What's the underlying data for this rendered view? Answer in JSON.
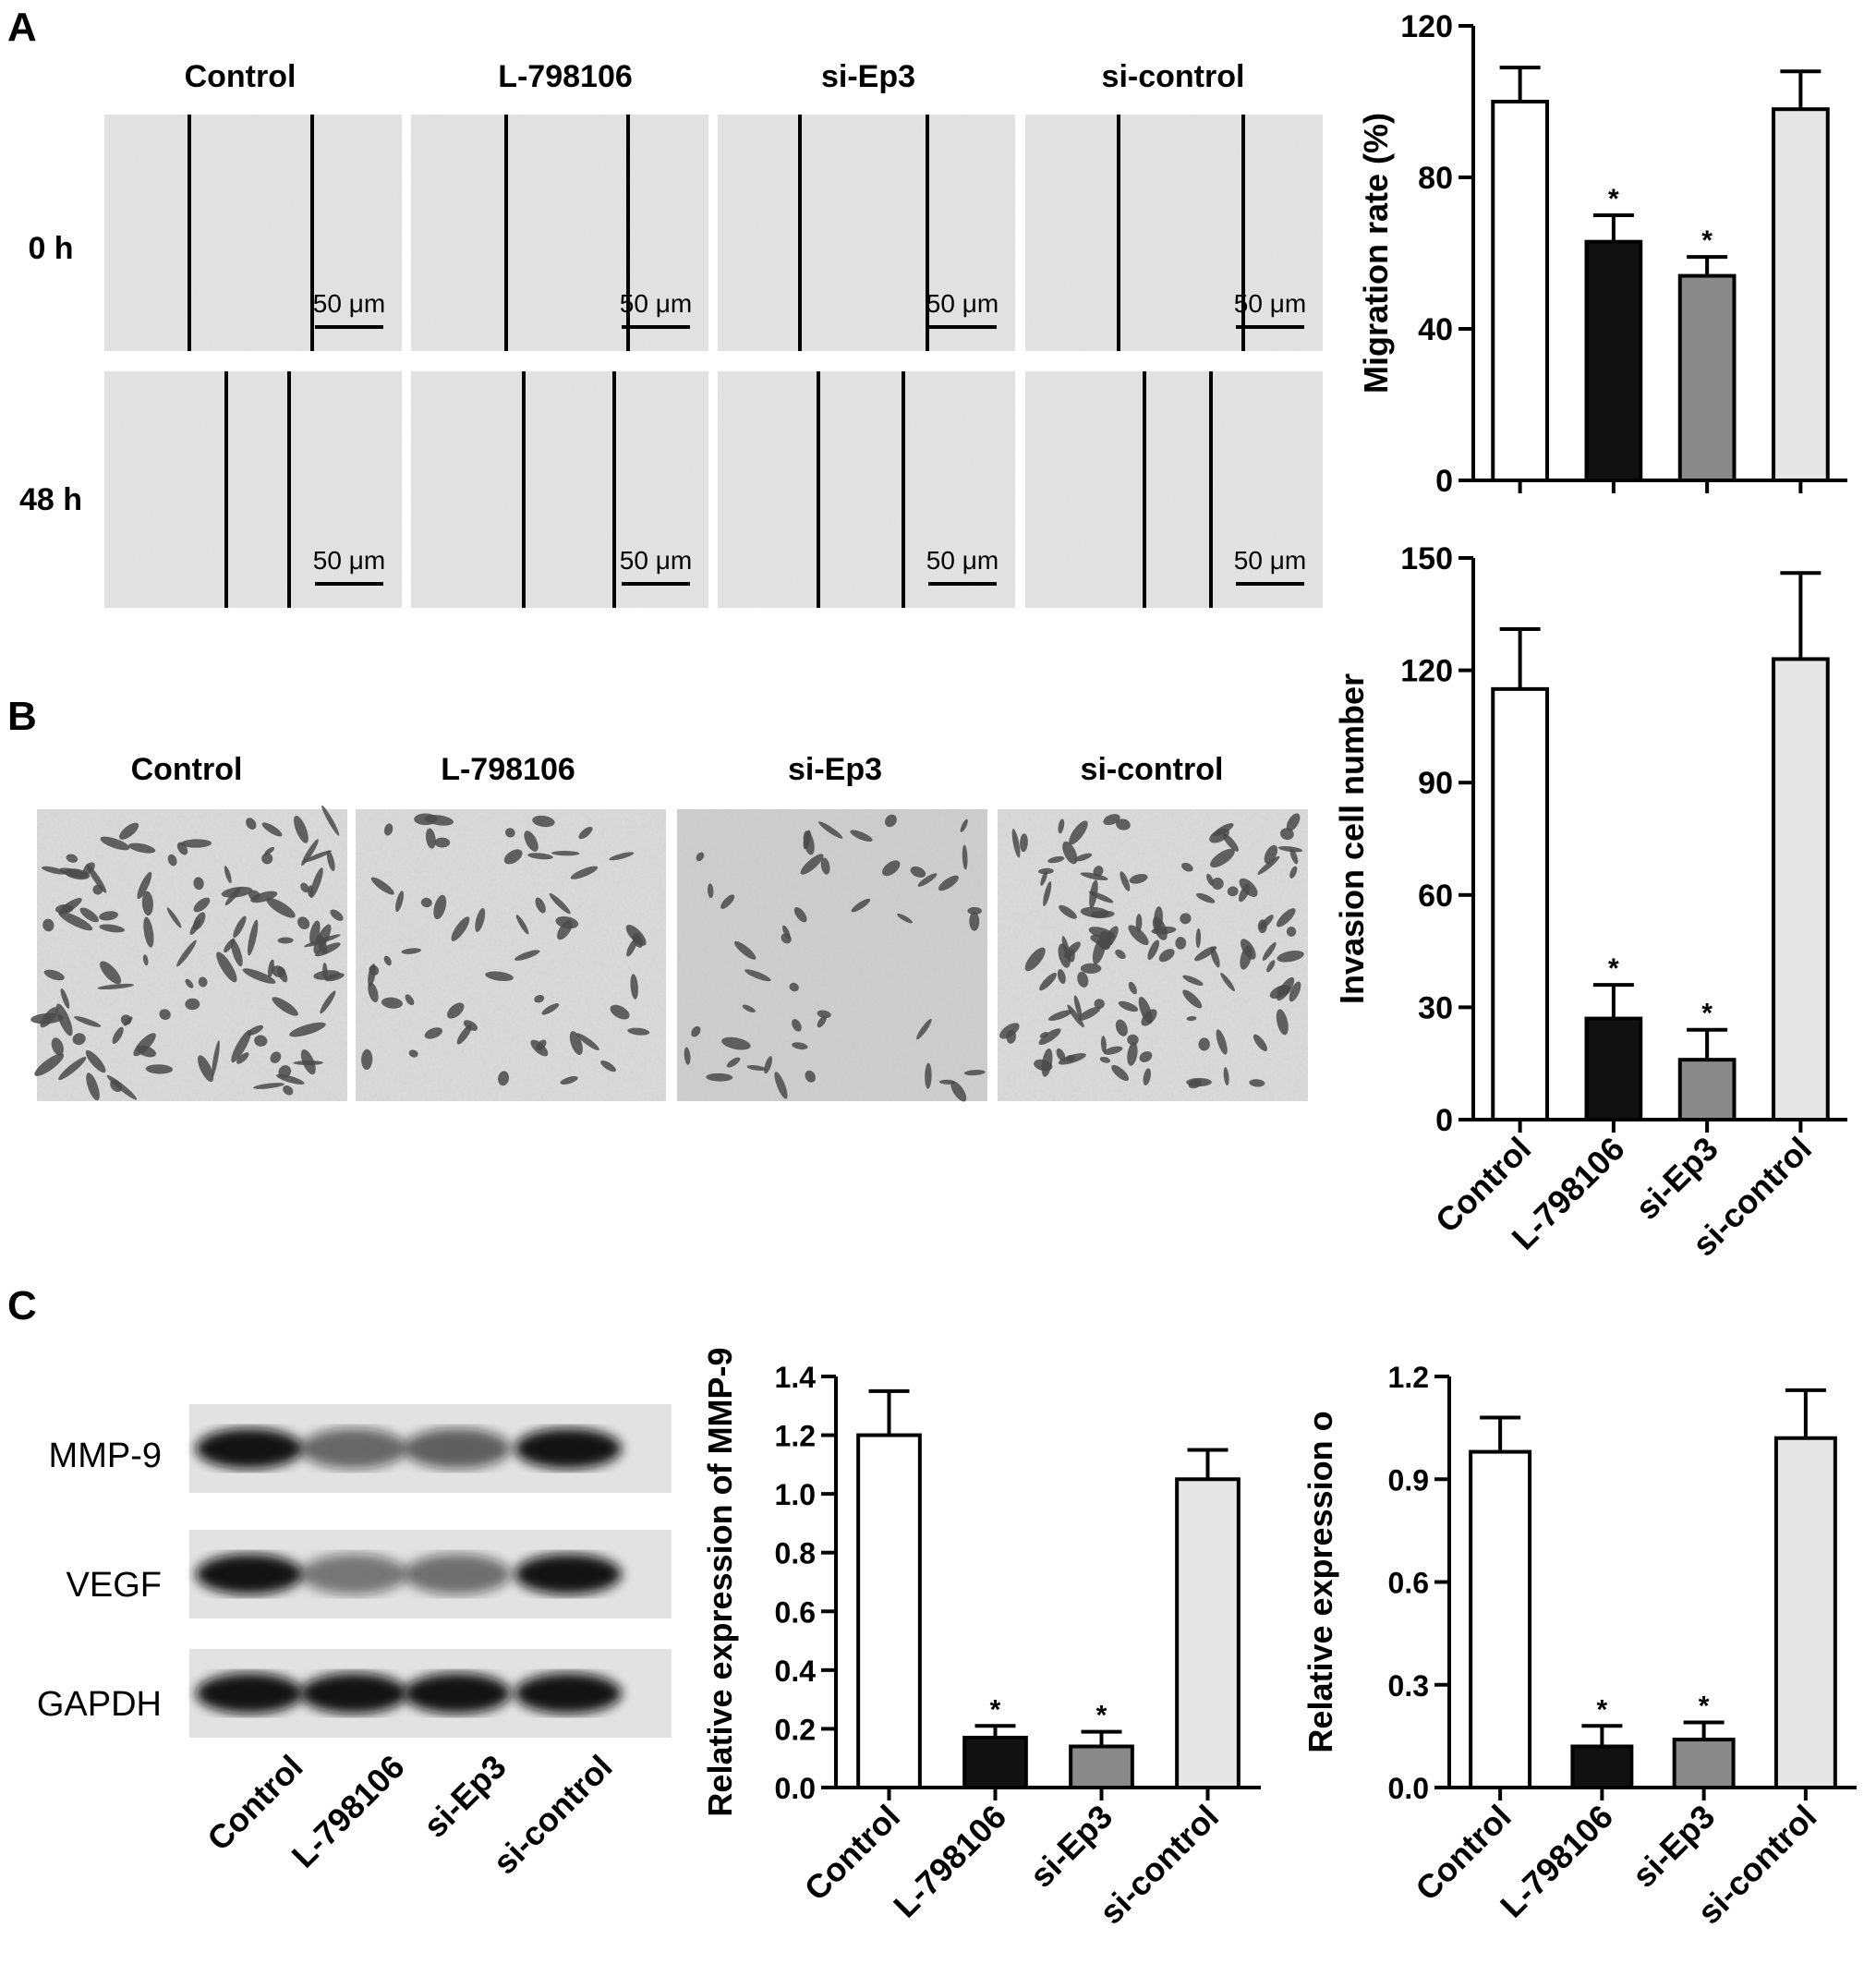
{
  "panels": {
    "a": "A",
    "b": "B",
    "c": "C"
  },
  "groups": [
    "Control",
    "L-798106",
    "si-Ep3",
    "si-control"
  ],
  "panel_a": {
    "times": [
      "0 h",
      "48 h"
    ],
    "scale_bar": "50 μm"
  },
  "panel_b": {
    "scale_bar": ""
  },
  "panel_c": {
    "blot_labels": [
      "MMP-9",
      "VEGF",
      "GAPDH"
    ]
  },
  "bar_fills": [
    "#ffffff",
    "#111111",
    "#8a8a8a",
    "#e6e6e6"
  ],
  "significance_mark": "*",
  "chart_data": [
    {
      "type": "bar",
      "title": "",
      "xlabel": "",
      "ylabel": "Migration rate (%)",
      "categories": [
        "Control",
        "L-798106",
        "si-Ep3",
        "si-control"
      ],
      "values": [
        100,
        63,
        54,
        98
      ],
      "errors": [
        9,
        7,
        5,
        10
      ],
      "significant": [
        false,
        true,
        true,
        false
      ],
      "ylim": [
        0,
        120
      ],
      "yticks": [
        "0",
        "40",
        "80",
        "120"
      ],
      "show_xticklabels": false
    },
    {
      "type": "bar",
      "title": "",
      "xlabel": "",
      "ylabel": "Invasion cell number",
      "categories": [
        "Control",
        "L-798106",
        "si-Ep3",
        "si-control"
      ],
      "values": [
        115,
        27,
        16,
        123
      ],
      "errors": [
        16,
        9,
        8,
        23
      ],
      "significant": [
        false,
        true,
        true,
        false
      ],
      "ylim": [
        0,
        150
      ],
      "yticks": [
        "0",
        "30",
        "60",
        "90",
        "120",
        "150"
      ],
      "show_xticklabels": true
    },
    {
      "type": "bar",
      "title": "",
      "xlabel": "",
      "ylabel": "Relative expression of MMP-9",
      "categories": [
        "Control",
        "L-798106",
        "si-Ep3",
        "si-control"
      ],
      "values": [
        1.2,
        0.17,
        0.14,
        1.05
      ],
      "errors": [
        0.15,
        0.04,
        0.05,
        0.1
      ],
      "significant": [
        false,
        true,
        true,
        false
      ],
      "ylim": [
        0,
        1.4
      ],
      "yticks": [
        "0.0",
        "0.2",
        "0.4",
        "0.6",
        "0.8",
        "1.0",
        "1.2",
        "1.4"
      ],
      "show_xticklabels": true
    },
    {
      "type": "bar",
      "title": "",
      "xlabel": "",
      "ylabel": "Relative expression o",
      "categories": [
        "Control",
        "L-798106",
        "si-Ep3",
        "si-control"
      ],
      "values": [
        0.98,
        0.12,
        0.14,
        1.02
      ],
      "errors": [
        0.1,
        0.06,
        0.05,
        0.14
      ],
      "significant": [
        false,
        true,
        true,
        false
      ],
      "ylim": [
        0,
        1.2
      ],
      "yticks": [
        "0.0",
        "0.3",
        "0.6",
        "0.9",
        "1.2"
      ],
      "show_xticklabels": true
    }
  ]
}
